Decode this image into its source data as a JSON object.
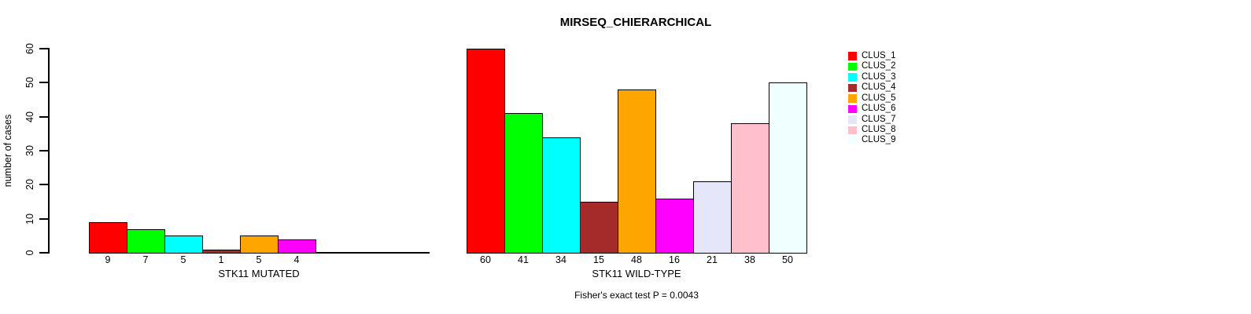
{
  "chart_data": {
    "type": "bar",
    "title": "MIRSEQ_CHIERARCHICAL",
    "ylabel": "number of cases",
    "ylim": [
      0,
      60
    ],
    "y_ticks": [
      0,
      10,
      20,
      30,
      40,
      50,
      60
    ],
    "grid": false,
    "legend_position": "right",
    "legend": [
      {
        "label": "CLUS_1",
        "color": "#FF0000"
      },
      {
        "label": "CLUS_2",
        "color": "#00FF00"
      },
      {
        "label": "CLUS_3",
        "color": "#00FFFF"
      },
      {
        "label": "CLUS_4",
        "color": "#A52A2A"
      },
      {
        "label": "CLUS_5",
        "color": "#FFA500"
      },
      {
        "label": "CLUS_6",
        "color": "#FF00FF"
      },
      {
        "label": "CLUS_7",
        "color": "#E6E6FA"
      },
      {
        "label": "CLUS_8",
        "color": "#FFC0CB"
      },
      {
        "label": "CLUS_9",
        "color": "#F0FFFF"
      }
    ],
    "panels": [
      {
        "xlabel": "STK11 MUTATED",
        "categories": [
          "CLUS_1",
          "CLUS_2",
          "CLUS_3",
          "CLUS_4",
          "CLUS_5",
          "CLUS_6"
        ],
        "values": [
          9,
          7,
          5,
          1,
          5,
          4
        ],
        "bar_labels": [
          "9",
          "7",
          "5",
          "1",
          "5",
          "4"
        ],
        "colors": [
          "#FF0000",
          "#00FF00",
          "#00FFFF",
          "#A52A2A",
          "#FFA500",
          "#FF00FF"
        ],
        "axis_slots": 9
      },
      {
        "xlabel": "STK11 WILD-TYPE",
        "categories": [
          "CLUS_1",
          "CLUS_2",
          "CLUS_3",
          "CLUS_4",
          "CLUS_5",
          "CLUS_6",
          "CLUS_7",
          "CLUS_8",
          "CLUS_9"
        ],
        "values": [
          60,
          41,
          34,
          15,
          48,
          16,
          21,
          38,
          50
        ],
        "bar_labels": [
          "60",
          "41",
          "34",
          "15",
          "48",
          "16",
          "21",
          "38",
          "50"
        ],
        "colors": [
          "#FF0000",
          "#00FF00",
          "#00FFFF",
          "#A52A2A",
          "#FFA500",
          "#FF00FF",
          "#E6E6FA",
          "#FFC0CB",
          "#F0FFFF"
        ],
        "axis_slots": 9
      }
    ],
    "footnote": "Fisher's exact test P = 0.0043"
  }
}
